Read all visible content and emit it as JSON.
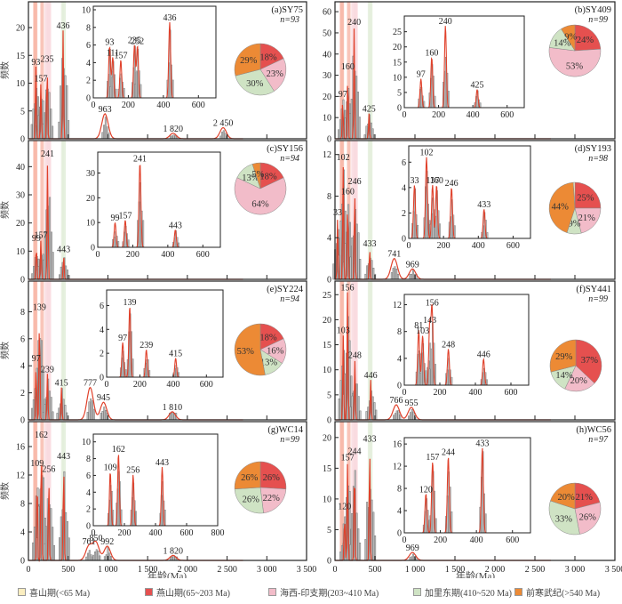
{
  "chart_data": {
    "type": "histogram-kde-grid",
    "shared": {
      "xlabel": "年龄(Ma)",
      "ylabel": "频数",
      "xlim": [
        0,
        3500
      ],
      "xticks": [
        0,
        500,
        1000,
        1500,
        2000,
        2500,
        3000,
        3500
      ],
      "xtick_labels": [
        "0",
        "500",
        "1 000",
        "1 500",
        "2 000",
        "2 500",
        "3 000",
        "3 500"
      ],
      "inset_xlim": [
        0,
        700
      ],
      "inset_xticks": [
        0,
        200,
        400,
        600
      ],
      "highlight_bands": [
        {
          "name": "燕山期",
          "range": [
            65,
            203
          ],
          "color": "#f7b7a8"
        },
        {
          "name": "海西-印支期",
          "range": [
            203,
            410
          ],
          "color": "#f9d9df"
        },
        {
          "name": "加里东期",
          "range": [
            410,
            520
          ],
          "color": "#e3eedb"
        }
      ]
    },
    "panels": [
      {
        "id": "a",
        "label": "(a)SY75",
        "n": "n=93",
        "ylim": [
          0,
          24
        ],
        "yticks": [
          0,
          5,
          10,
          15,
          20
        ],
        "peaks": [
          {
            "x": 93,
            "label": "93",
            "y": 13
          },
          {
            "x": 157,
            "label": "157",
            "y": 10
          },
          {
            "x": 235,
            "label": "235",
            "y": 13.5
          },
          {
            "x": 436,
            "label": "436",
            "y": 19.5
          },
          {
            "x": 963,
            "label": "963",
            "y": 4.5
          },
          {
            "x": 1820,
            "label": "1 820",
            "y": 1
          },
          {
            "x": 2450,
            "label": "2 450",
            "y": 2
          }
        ],
        "inset": {
          "ylim": [
            0,
            10
          ],
          "yticks": [
            0,
            2,
            4,
            6,
            8,
            10
          ],
          "peaks": [
            {
              "x": 93,
              "label": "93",
              "y": 5.8
            },
            {
              "x": 111,
              "label": "111",
              "y": 4.6
            },
            {
              "x": 157,
              "label": "157",
              "y": 4.3
            },
            {
              "x": 235,
              "label": "235",
              "y": 6.0
            },
            {
              "x": 252,
              "label": "252",
              "y": 5.9
            },
            {
              "x": 436,
              "label": "436",
              "y": 8.6
            }
          ]
        },
        "pie": [
          {
            "name": "燕山期",
            "pct": 18
          },
          {
            "name": "海西-印支期",
            "pct": 23
          },
          {
            "name": "加里东期",
            "pct": 30
          },
          {
            "name": "前寒武纪",
            "pct": 29
          }
        ]
      },
      {
        "id": "b",
        "label": "(b)SY409",
        "n": "n=99",
        "ylim": [
          0,
          63
        ],
        "yticks": [
          0,
          10,
          20,
          30,
          40,
          50,
          60
        ],
        "peaks": [
          {
            "x": 97,
            "label": "97",
            "y": 19
          },
          {
            "x": 160,
            "label": "160",
            "y": 32
          },
          {
            "x": 240,
            "label": "240",
            "y": 53
          },
          {
            "x": 425,
            "label": "425",
            "y": 12
          }
        ],
        "inset": {
          "ylim": [
            0,
            29
          ],
          "yticks": [
            0,
            5,
            10,
            15,
            20,
            25
          ],
          "peaks": [
            {
              "x": 97,
              "label": "97",
              "y": 9.5
            },
            {
              "x": 160,
              "label": "160",
              "y": 16.5
            },
            {
              "x": 240,
              "label": "240",
              "y": 27
            },
            {
              "x": 425,
              "label": "425",
              "y": 6
            }
          ]
        },
        "pie": [
          {
            "name": "燕山期",
            "pct": 24
          },
          {
            "name": "海西-印支期",
            "pct": 53
          },
          {
            "name": "加里东期",
            "pct": 14
          },
          {
            "name": "前寒武纪",
            "pct": 9
          }
        ]
      },
      {
        "id": "c",
        "label": "(c)SY156",
        "n": "n=94",
        "ylim": [
          0,
          48
        ],
        "yticks": [
          0,
          10,
          20,
          30,
          40
        ],
        "peaks": [
          {
            "x": 99,
            "label": "99",
            "y": 13
          },
          {
            "x": 157,
            "label": "157",
            "y": 14
          },
          {
            "x": 241,
            "label": "241",
            "y": 43
          },
          {
            "x": 443,
            "label": "443",
            "y": 9
          }
        ],
        "inset": {
          "ylim": [
            0,
            37
          ],
          "yticks": [
            0,
            10,
            20,
            30
          ],
          "peaks": [
            {
              "x": 99,
              "label": "99",
              "y": 10
            },
            {
              "x": 157,
              "label": "157",
              "y": 11
            },
            {
              "x": 241,
              "label": "241",
              "y": 34
            },
            {
              "x": 443,
              "label": "443",
              "y": 7
            }
          ]
        },
        "pie": [
          {
            "name": "燕山期",
            "pct": 18
          },
          {
            "name": "海西-印支期",
            "pct": 64
          },
          {
            "name": "加里东期",
            "pct": 13
          },
          {
            "name": "前寒武纪",
            "pct": 5
          }
        ]
      },
      {
        "id": "d",
        "label": "(d)SY193",
        "n": "n=98",
        "ylim": [
          0,
          13
        ],
        "yticks": [
          0,
          4,
          8,
          12
        ],
        "peaks": [
          {
            "x": 33,
            "label": "33",
            "y": 6
          },
          {
            "x": 102,
            "label": "102",
            "y": 11.3
          },
          {
            "x": 160,
            "label": "160",
            "y": 8
          },
          {
            "x": 246,
            "label": "246",
            "y": 9
          },
          {
            "x": 433,
            "label": "433",
            "y": 3
          },
          {
            "x": 741,
            "label": "741",
            "y": 2
          },
          {
            "x": 969,
            "label": "969",
            "y": 1
          }
        ],
        "inset": {
          "ylim": [
            0,
            7
          ],
          "yticks": [
            0,
            2,
            4,
            6
          ],
          "peaks": [
            {
              "x": 33,
              "label": "33",
              "y": 4.2
            },
            {
              "x": 102,
              "label": "102",
              "y": 6.4
            },
            {
              "x": 137,
              "label": "137",
              "y": 4.2
            },
            {
              "x": 160,
              "label": "160",
              "y": 4.2
            },
            {
              "x": 246,
              "label": "246",
              "y": 4
            },
            {
              "x": 433,
              "label": "433",
              "y": 2.3
            }
          ]
        },
        "pie": [
          {
            "name": "燕山期",
            "pct": 25
          },
          {
            "name": "海西-印支期",
            "pct": 21
          },
          {
            "name": "加里东期",
            "pct": 9
          },
          {
            "name": "前寒武纪",
            "pct": 44
          },
          {
            "name": "喜山期",
            "pct": 1
          }
        ]
      },
      {
        "id": "e",
        "label": "(e)SY224",
        "n": "n=94",
        "ylim": [
          0,
          10
        ],
        "yticks": [
          0,
          2,
          4,
          6,
          8
        ],
        "peaks": [
          {
            "x": 97,
            "label": "97",
            "y": 4.2
          },
          {
            "x": 139,
            "label": "139",
            "y": 8
          },
          {
            "x": 239,
            "label": "239",
            "y": 3.4
          },
          {
            "x": 415,
            "label": "415",
            "y": 2.4
          },
          {
            "x": 777,
            "label": "777",
            "y": 2.4
          },
          {
            "x": 945,
            "label": "945",
            "y": 1.3
          },
          {
            "x": 1810,
            "label": "1 810",
            "y": 0.6
          }
        ],
        "inset": {
          "ylim": [
            0,
            7
          ],
          "yticks": [
            0,
            2,
            4,
            6
          ],
          "peaks": [
            {
              "x": 97,
              "label": "97",
              "y": 2.9
            },
            {
              "x": 139,
              "label": "139",
              "y": 5.9
            },
            {
              "x": 239,
              "label": "239",
              "y": 2.3
            },
            {
              "x": 415,
              "label": "415",
              "y": 1.6
            }
          ]
        },
        "pie": [
          {
            "name": "燕山期",
            "pct": 18
          },
          {
            "name": "海西-印支期",
            "pct": 16
          },
          {
            "name": "加里东期",
            "pct": 13
          },
          {
            "name": "前寒武纪",
            "pct": 53
          }
        ]
      },
      {
        "id": "f",
        "label": "(f)SY441",
        "n": "n=99",
        "ylim": [
          0,
          27
        ],
        "yticks": [
          0,
          5,
          10,
          15,
          20,
          25
        ],
        "peaks": [
          {
            "x": 103,
            "label": "103",
            "y": 17
          },
          {
            "x": 156,
            "label": "156",
            "y": 25.5
          },
          {
            "x": 248,
            "label": "248",
            "y": 12
          },
          {
            "x": 446,
            "label": "446",
            "y": 8
          },
          {
            "x": 766,
            "label": "766",
            "y": 3
          },
          {
            "x": 955,
            "label": "955",
            "y": 2.5
          }
        ],
        "inset": {
          "ylim": [
            0,
            13
          ],
          "yticks": [
            0,
            4,
            8,
            12
          ],
          "peaks": [
            {
              "x": 81,
              "label": "81",
              "y": 8.2
            },
            {
              "x": 103,
              "label": "103",
              "y": 7.4
            },
            {
              "x": 143,
              "label": "143",
              "y": 9
            },
            {
              "x": 156,
              "label": "156",
              "y": 11.6
            },
            {
              "x": 248,
              "label": "248",
              "y": 5.4
            },
            {
              "x": 446,
              "label": "446",
              "y": 3.9
            }
          ]
        },
        "pie": [
          {
            "name": "燕山期",
            "pct": 37
          },
          {
            "name": "海西-印支期",
            "pct": 20
          },
          {
            "name": "加里东期",
            "pct": 14
          },
          {
            "name": "前寒武纪",
            "pct": 29
          }
        ]
      },
      {
        "id": "g",
        "label": "(g)WC14",
        "n": "n=99",
        "ylim": [
          0,
          19
        ],
        "yticks": [
          0,
          4,
          8,
          12,
          16
        ],
        "peaks": [
          {
            "x": 109,
            "label": "109",
            "y": 13
          },
          {
            "x": 162,
            "label": "162",
            "y": 17
          },
          {
            "x": 256,
            "label": "256",
            "y": 12.2
          },
          {
            "x": 443,
            "label": "443",
            "y": 14
          },
          {
            "x": 761,
            "label": "761",
            "y": 2
          },
          {
            "x": 850,
            "label": "850",
            "y": 2.5
          },
          {
            "x": 992,
            "label": "992",
            "y": 2
          },
          {
            "x": 1820,
            "label": "1 820",
            "y": 0.7
          }
        ],
        "inset": {
          "ylim": [
            0,
            10.5
          ],
          "yticks": [
            0,
            2,
            4,
            6,
            8,
            10
          ],
          "xlim": [
            0,
            800
          ],
          "xticks": [
            0,
            200,
            400,
            600,
            800
          ],
          "peaks": [
            {
              "x": 109,
              "label": "109",
              "y": 6.4
            },
            {
              "x": 162,
              "label": "162",
              "y": 8.6
            },
            {
              "x": 256,
              "label": "256",
              "y": 6.1
            },
            {
              "x": 443,
              "label": "443",
              "y": 7
            }
          ]
        },
        "pie": [
          {
            "name": "燕山期",
            "pct": 26
          },
          {
            "name": "海西-印支期",
            "pct": 22
          },
          {
            "name": "加里东期",
            "pct": 26
          },
          {
            "name": "前寒武纪",
            "pct": 26
          }
        ]
      },
      {
        "id": "h",
        "label": "(h)WC56",
        "n": "n=97",
        "ylim": [
          0,
          22
        ],
        "yticks": [
          0,
          5,
          10,
          15,
          20
        ],
        "peaks": [
          {
            "x": 120,
            "label": "120",
            "y": 8
          },
          {
            "x": 157,
            "label": "157",
            "y": 16
          },
          {
            "x": 244,
            "label": "244",
            "y": 17
          },
          {
            "x": 433,
            "label": "433",
            "y": 19
          },
          {
            "x": 969,
            "label": "969",
            "y": 1.3
          }
        ],
        "inset": {
          "ylim": [
            0,
            16.5
          ],
          "yticks": [
            0,
            4,
            8,
            12,
            16
          ],
          "peaks": [
            {
              "x": 120,
              "label": "120",
              "y": 7
            },
            {
              "x": 157,
              "label": "157",
              "y": 12.8
            },
            {
              "x": 244,
              "label": "244",
              "y": 13.7
            },
            {
              "x": 433,
              "label": "433",
              "y": 15.3
            }
          ]
        },
        "pie": [
          {
            "name": "燕山期",
            "pct": 21
          },
          {
            "name": "海西-印支期",
            "pct": 26
          },
          {
            "name": "加里东期",
            "pct": 33
          },
          {
            "name": "前寒武纪",
            "pct": 20
          }
        ]
      }
    ],
    "legend": [
      {
        "key": "喜山期",
        "label": "喜山期(<65 Ma)",
        "color": "#fbeec0"
      },
      {
        "key": "燕山期",
        "label": "燕山期(65~203 Ma)",
        "color": "#e5504f"
      },
      {
        "key": "海西-印支期",
        "label": "海西-印支期(203~410 Ma)",
        "color": "#f2bcc9"
      },
      {
        "key": "加里东期",
        "label": "加里东期(410~520 Ma)",
        "color": "#cfe3c4"
      },
      {
        "key": "前寒武纪",
        "label": "前寒武纪(>540 Ma)",
        "color": "#ec8a35"
      }
    ],
    "colors": {
      "kde": "#e0412b",
      "bar_fill": "#c4c4c4",
      "bar_stroke": "#777777"
    }
  }
}
